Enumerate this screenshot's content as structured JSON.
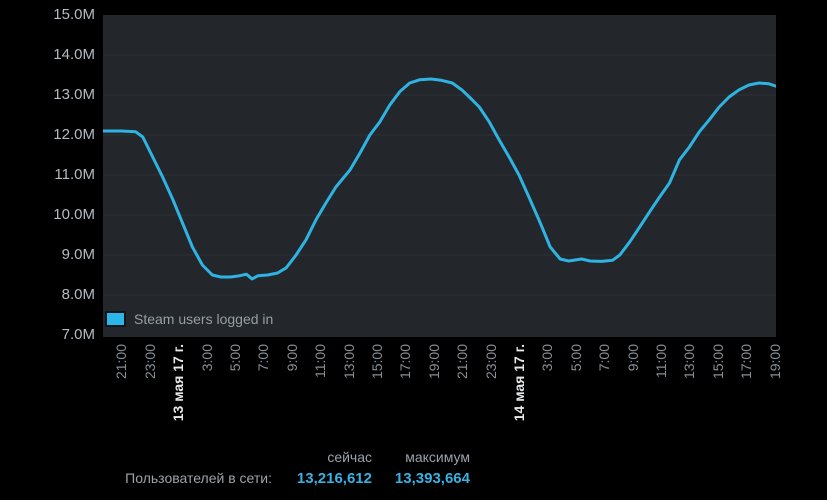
{
  "colors": {
    "page_background": "#000000",
    "plot_background": "#23262a",
    "gridline": "#2c3136",
    "line": "#2fb3e3",
    "y_label": "#b4bcc3",
    "x_label": "#868f96",
    "date_label": "#e6e8ea",
    "legend_text": "#969fa7",
    "stat_label": "#9aa3ab",
    "stat_value": "#38b1e3"
  },
  "legend": {
    "swatch": "cyan-square",
    "label": "Steam users logged in"
  },
  "stats": {
    "col_now": "сейчас",
    "col_max": "максимум",
    "row_label": "Пользователей в сети:",
    "now_value": "13,216,612",
    "max_value": "13,393,664"
  },
  "chart_data": {
    "type": "line",
    "title": "",
    "series_name": "Steam users logged in",
    "grid": "horizontal-only",
    "legend_position": "bottom-left-inside",
    "ylim": [
      7,
      15
    ],
    "y_unit": "millions of users",
    "y_ticks": [
      {
        "value": 15,
        "label": "15.0M"
      },
      {
        "value": 14,
        "label": "14.0M"
      },
      {
        "value": 13,
        "label": "13.0M"
      },
      {
        "value": 12,
        "label": "12.0M"
      },
      {
        "value": 11,
        "label": "11.0M"
      },
      {
        "value": 10,
        "label": "10.0M"
      },
      {
        "value": 9,
        "label": "9.0M"
      },
      {
        "value": 8,
        "label": "8.0M"
      },
      {
        "value": 7,
        "label": "7.0M"
      }
    ],
    "x_range_hours": [
      -1.3,
      46.1
    ],
    "x_tick_step_hours": 2,
    "x_ticks": [
      {
        "label": "21:00",
        "is_date": false
      },
      {
        "label": "23:00",
        "is_date": false
      },
      {
        "label": "13 мая 17 г.",
        "is_date": true
      },
      {
        "label": "3:00",
        "is_date": false
      },
      {
        "label": "5:00",
        "is_date": false
      },
      {
        "label": "7:00",
        "is_date": false
      },
      {
        "label": "9:00",
        "is_date": false
      },
      {
        "label": "11:00",
        "is_date": false
      },
      {
        "label": "13:00",
        "is_date": false
      },
      {
        "label": "15:00",
        "is_date": false
      },
      {
        "label": "17:00",
        "is_date": false
      },
      {
        "label": "19:00",
        "is_date": false
      },
      {
        "label": "21:00",
        "is_date": false
      },
      {
        "label": "23:00",
        "is_date": false
      },
      {
        "label": "14 мая 17 г.",
        "is_date": true
      },
      {
        "label": "3:00",
        "is_date": false
      },
      {
        "label": "5:00",
        "is_date": false
      },
      {
        "label": "7:00",
        "is_date": false
      },
      {
        "label": "9:00",
        "is_date": false
      },
      {
        "label": "11:00",
        "is_date": false
      },
      {
        "label": "13:00",
        "is_date": false
      },
      {
        "label": "15:00",
        "is_date": false
      },
      {
        "label": "17:00",
        "is_date": false
      },
      {
        "label": "19:00",
        "is_date": false
      }
    ],
    "points_t_hours_vs_millions": [
      [
        -1.3,
        12.1
      ],
      [
        0,
        12.1
      ],
      [
        1,
        12.08
      ],
      [
        1.5,
        11.95
      ],
      [
        2.2,
        11.45
      ],
      [
        2.9,
        10.95
      ],
      [
        3.6,
        10.4
      ],
      [
        4.3,
        9.8
      ],
      [
        5,
        9.2
      ],
      [
        5.7,
        8.75
      ],
      [
        6.4,
        8.5
      ],
      [
        7,
        8.45
      ],
      [
        7.7,
        8.45
      ],
      [
        8.3,
        8.48
      ],
      [
        8.8,
        8.52
      ],
      [
        9.2,
        8.4
      ],
      [
        9.6,
        8.48
      ],
      [
        10.3,
        8.5
      ],
      [
        11,
        8.55
      ],
      [
        11.6,
        8.68
      ],
      [
        12.3,
        9.0
      ],
      [
        13,
        9.38
      ],
      [
        13.7,
        9.88
      ],
      [
        14.4,
        10.3
      ],
      [
        15.1,
        10.7
      ],
      [
        16.1,
        11.13
      ],
      [
        16.8,
        11.55
      ],
      [
        17.5,
        12.0
      ],
      [
        18.2,
        12.33
      ],
      [
        18.9,
        12.75
      ],
      [
        19.6,
        13.08
      ],
      [
        20.3,
        13.3
      ],
      [
        21,
        13.38
      ],
      [
        21.8,
        13.4
      ],
      [
        22.5,
        13.37
      ],
      [
        23.3,
        13.3
      ],
      [
        24,
        13.12
      ],
      [
        24.5,
        12.95
      ],
      [
        25.2,
        12.7
      ],
      [
        25.9,
        12.33
      ],
      [
        26.6,
        11.88
      ],
      [
        27.3,
        11.45
      ],
      [
        28,
        11.0
      ],
      [
        28.7,
        10.45
      ],
      [
        29.5,
        9.8
      ],
      [
        30.2,
        9.2
      ],
      [
        30.9,
        8.9
      ],
      [
        31.5,
        8.85
      ],
      [
        32.4,
        8.9
      ],
      [
        33,
        8.85
      ],
      [
        33.8,
        8.84
      ],
      [
        34.6,
        8.87
      ],
      [
        35.1,
        9.0
      ],
      [
        35.8,
        9.33
      ],
      [
        36.5,
        9.7
      ],
      [
        37.2,
        10.08
      ],
      [
        37.9,
        10.45
      ],
      [
        38.6,
        10.8
      ],
      [
        39.3,
        11.38
      ],
      [
        40,
        11.7
      ],
      [
        40.7,
        12.08
      ],
      [
        41.4,
        12.38
      ],
      [
        42.1,
        12.7
      ],
      [
        42.8,
        12.95
      ],
      [
        43.5,
        13.13
      ],
      [
        44.2,
        13.25
      ],
      [
        44.9,
        13.3
      ],
      [
        45.6,
        13.28
      ],
      [
        46.1,
        13.22
      ]
    ]
  }
}
